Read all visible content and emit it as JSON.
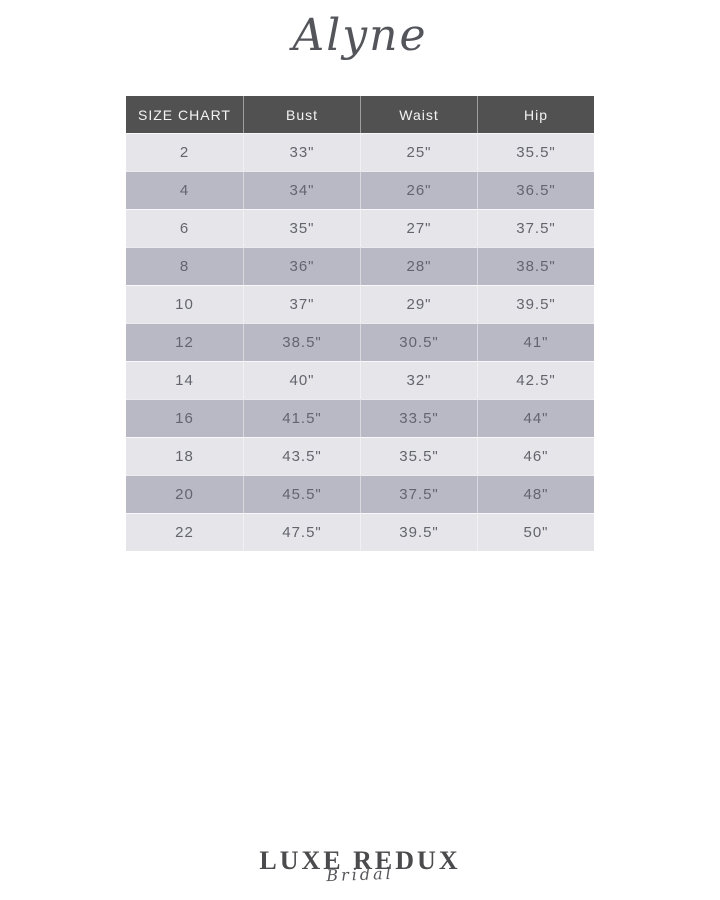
{
  "brand": {
    "title": "Alyne"
  },
  "chart_data": {
    "type": "table",
    "title": "SIZE CHART",
    "columns": [
      "SIZE CHART",
      "Bust",
      "Waist",
      "Hip"
    ],
    "rows": [
      [
        "2",
        "33\"",
        "25\"",
        "35.5\""
      ],
      [
        "4",
        "34\"",
        "26\"",
        "36.5\""
      ],
      [
        "6",
        "35\"",
        "27\"",
        "37.5\""
      ],
      [
        "8",
        "36\"",
        "28\"",
        "38.5\""
      ],
      [
        "10",
        "37\"",
        "29\"",
        "39.5\""
      ],
      [
        "12",
        "38.5\"",
        "30.5\"",
        "41\""
      ],
      [
        "14",
        "40\"",
        "32\"",
        "42.5\""
      ],
      [
        "16",
        "41.5\"",
        "33.5\"",
        "44\""
      ],
      [
        "18",
        "43.5\"",
        "35.5\"",
        "46\""
      ],
      [
        "20",
        "45.5\"",
        "37.5\"",
        "48\""
      ],
      [
        "22",
        "47.5\"",
        "39.5\"",
        "50\""
      ]
    ],
    "layout": {
      "striped": true,
      "column_alignment": "center"
    }
  },
  "colors": {
    "header_bg": "#515151",
    "header_text": "#f4f4f4",
    "row_light": "#e5e5ea",
    "row_dark": "#b9b9c5",
    "row_text": "#64646e",
    "page_bg": "#ffffff"
  },
  "footer": {
    "logo_primary": "LUXE REDUX",
    "logo_secondary": "Bridal"
  }
}
